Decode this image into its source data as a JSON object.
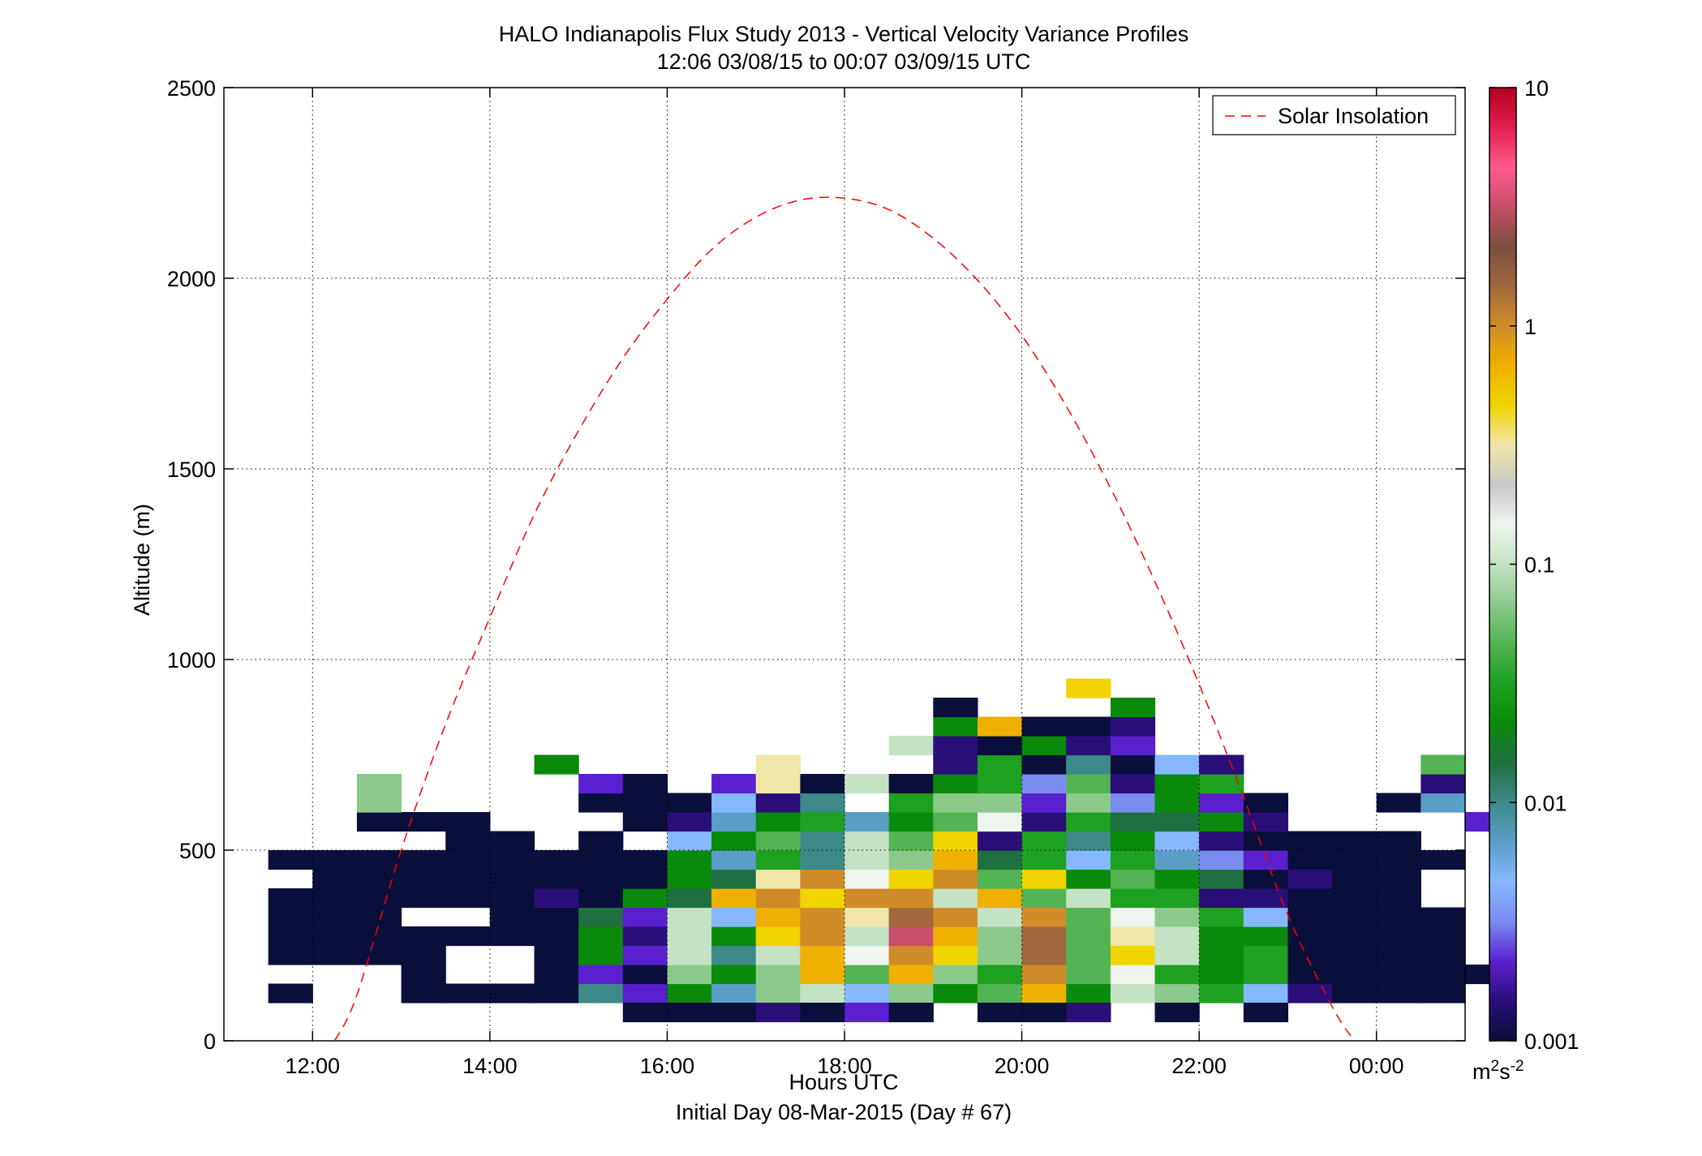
{
  "chart_data": {
    "type": "heatmap",
    "title": "HALO Indianapolis Flux Study 2013 - Vertical Velocity Variance Profiles",
    "subtitle": "12:06 03/08/15 to 00:07 03/09/15  UTC",
    "xlabel": "Hours UTC",
    "xlabel2": "Initial Day 08-Mar-2015 (Day # 67)",
    "ylabel": "Altitude (m)",
    "x_unit": "hours UTC (decimal, 24 = 00:00 next day)",
    "xlim": [
      11.0,
      25.0
    ],
    "ylim": [
      0,
      2500
    ],
    "x_ticks": [
      12,
      14,
      16,
      18,
      20,
      22,
      24
    ],
    "x_tick_labels": [
      "12:00",
      "14:00",
      "16:00",
      "18:00",
      "20:00",
      "22:00",
      "00:00"
    ],
    "y_ticks": [
      0,
      500,
      1000,
      1500,
      2000,
      2500
    ],
    "y_tick_labels": [
      "0",
      "500",
      "1000",
      "1500",
      "2000",
      "2500"
    ],
    "grid": true,
    "colorbar": {
      "scale": "log",
      "range": [
        0.001,
        10
      ],
      "ticks": [
        0.001,
        0.01,
        0.1,
        1,
        10
      ],
      "tick_labels": [
        "0.001",
        "0.01",
        "0.1",
        "1",
        "10"
      ],
      "unit_base": "m",
      "unit_exp1": "2",
      "unit_mid": "s",
      "unit_exp2": "-2",
      "stops": [
        "#0a0f3c",
        "#2a0f78",
        "#5a20d0",
        "#7a8cf0",
        "#86b8ff",
        "#5a9ec8",
        "#3d8a88",
        "#1f7040",
        "#0a8a0a",
        "#1ea020",
        "#52b452",
        "#8cca8c",
        "#c4e2c4",
        "#eef4ee",
        "#c8c8c8",
        "#f0e6a8",
        "#f0d400",
        "#f0b000",
        "#d08c28",
        "#a0683c",
        "#7a4e3e",
        "#c84e6c",
        "#ff5a8c",
        "#e02050",
        "#b40020"
      ]
    },
    "legend": {
      "position": "top-right",
      "entries": [
        {
          "name": "Solar Insolation",
          "color": "#ff0000",
          "style": "dashed"
        }
      ]
    },
    "cell": {
      "width_hours": 0.5,
      "height_m": 50
    },
    "rows": [
      {
        "alt": 125,
        "x_start": 11.5,
        "colors": [
          "#0a0f3c",
          null,
          null,
          "#0a0f3c",
          "#0a0f3c",
          "#0a0f3c",
          "#0a0f3c",
          "#3d8a88",
          "#5a20d0",
          "#0a8a0a",
          "#5a9ec8",
          "#8cca8c",
          "#c4e2c4",
          "#86b8ff",
          "#8cca8c",
          "#0a8a0a",
          "#52b452",
          "#f0b000",
          "#0a8a0a",
          "#c4e2c4",
          "#8cca8c",
          "#1ea020",
          "#86b8ff",
          "#2a0f78",
          "#0a0f3c",
          "#0a0f3c",
          "#0a0f3c"
        ]
      },
      {
        "alt": 175,
        "x_start": 13.0,
        "colors": [
          "#0a0f3c",
          null,
          null,
          "#0a0f3c",
          "#5a20d0",
          "#0a0f3c",
          "#8cca8c",
          "#0a8a0a",
          "#8cca8c",
          "#f0b000",
          "#52b452",
          "#f0b000",
          "#8cca8c",
          "#1ea020",
          "#d08c28",
          "#52b452",
          "#eef4ee",
          "#1ea020",
          "#0a8a0a",
          "#1ea020",
          "#0a0f3c",
          "#0a0f3c",
          "#0a0f3c",
          "#0a0f3c",
          "#0a0f3c"
        ]
      },
      {
        "alt": 225,
        "x_start": 11.5,
        "colors": [
          "#0a0f3c",
          "#0a0f3c",
          "#0a0f3c",
          "#0a0f3c",
          null,
          null,
          "#0a0f3c",
          "#0a8a0a",
          "#5a20d0",
          "#c4e2c4",
          "#3d8a88",
          "#c4e2c4",
          "#f0b000",
          "#eef4ee",
          "#d08c28",
          "#f0d400",
          "#8cca8c",
          "#a0683c",
          "#52b452",
          "#f0d400",
          "#c4e2c4",
          "#0a8a0a",
          "#1ea020",
          "#0a0f3c",
          "#0a0f3c",
          "#0a0f3c",
          "#0a0f3c"
        ]
      },
      {
        "alt": 275,
        "x_start": 11.5,
        "colors": [
          "#0a0f3c",
          "#0a0f3c",
          "#0a0f3c",
          "#0a0f3c",
          "#0a0f3c",
          "#0a0f3c",
          "#0a0f3c",
          "#0a8a0a",
          "#2a0f78",
          "#c4e2c4",
          "#0a8a0a",
          "#f0d400",
          "#d08c28",
          "#c4e2c4",
          "#c84e6c",
          "#f0b000",
          "#8cca8c",
          "#a0683c",
          "#52b452",
          "#f0e6a8",
          "#c4e2c4",
          "#0a8a0a",
          "#0a8a0a",
          "#0a0f3c",
          "#0a0f3c",
          "#0a0f3c",
          "#0a0f3c"
        ]
      },
      {
        "alt": 325,
        "x_start": 11.5,
        "colors": [
          "#0a0f3c",
          "#0a0f3c",
          "#0a0f3c",
          null,
          null,
          "#0a0f3c",
          "#0a0f3c",
          "#1f7040",
          "#5a20d0",
          "#c4e2c4",
          "#86b8ff",
          "#f0b000",
          "#d08c28",
          "#f0e6a8",
          "#a0683c",
          "#d08c28",
          "#c4e2c4",
          "#d08c28",
          "#52b452",
          "#eef4ee",
          "#8cca8c",
          "#1ea020",
          "#86b8ff",
          "#0a0f3c",
          "#0a0f3c",
          "#0a0f3c",
          "#0a0f3c"
        ]
      },
      {
        "alt": 375,
        "x_start": 11.5,
        "colors": [
          "#0a0f3c",
          "#0a0f3c",
          "#0a0f3c",
          "#0a0f3c",
          "#0a0f3c",
          "#0a0f3c",
          "#2a0f78",
          "#0a0f3c",
          "#0a8a0a",
          "#1f7040",
          "#f0b000",
          "#d08c28",
          "#f0d400",
          "#d08c28",
          "#d08c28",
          "#c4e2c4",
          "#f0b000",
          "#52b452",
          "#c4e2c4",
          "#1ea020",
          "#1ea020",
          "#2a0f78",
          "#2a0f78",
          "#0a0f3c",
          "#0a0f3c",
          "#0a0f3c"
        ]
      },
      {
        "alt": 425,
        "x_start": 12.0,
        "colors": [
          "#0a0f3c",
          "#0a0f3c",
          "#0a0f3c",
          "#0a0f3c",
          "#0a0f3c",
          "#0a0f3c",
          "#0a0f3c",
          "#0a0f3c",
          "#0a8a0a",
          "#1f7040",
          "#f0e6a8",
          "#d08c28",
          "#eef4ee",
          "#f0d400",
          "#d08c28",
          "#52b452",
          "#f0d400",
          "#0a8a0a",
          "#52b452",
          "#0a8a0a",
          "#1f7040",
          "#0a0f3c",
          "#2a0f78",
          "#0a0f3c",
          "#0a0f3c"
        ]
      },
      {
        "alt": 475,
        "x_start": 11.5,
        "colors": [
          "#0a0f3c",
          "#0a0f3c",
          "#0a0f3c",
          "#0a0f3c",
          "#0a0f3c",
          "#0a0f3c",
          "#0a0f3c",
          "#0a0f3c",
          "#0a0f3c",
          "#0a8a0a",
          "#5a9ec8",
          "#1ea020",
          "#3d8a88",
          "#c4e2c4",
          "#8cca8c",
          "#f0b000",
          "#1f7040",
          "#1ea020",
          "#86b8ff",
          "#1ea020",
          "#5a9ec8",
          "#7a8cf0",
          "#5a20d0",
          "#0a0f3c",
          "#0a0f3c",
          "#0a0f3c",
          "#0a0f3c"
        ]
      },
      {
        "alt": 525,
        "x_start": 13.5,
        "colors": [
          "#0a0f3c",
          "#0a0f3c",
          null,
          "#0a0f3c",
          null,
          "#86b8ff",
          "#0a8a0a",
          "#52b452",
          "#3d8a88",
          "#c4e2c4",
          "#52b452",
          "#f0d400",
          "#2a0f78",
          "#1ea020",
          "#3d8a88",
          "#0a8a0a",
          "#86b8ff",
          "#2a0f78",
          "#0a0f3c",
          "#0a0f3c",
          "#0a0f3c",
          "#0a0f3c"
        ]
      },
      {
        "alt": 575,
        "x_start": 12.5,
        "colors": [
          "#0a0f3c",
          "#0a0f3c",
          "#0a0f3c",
          null,
          null,
          null,
          "#0a0f3c",
          "#2a0f78",
          "#5a9ec8",
          "#0a8a0a",
          "#1ea020",
          "#5a9ec8",
          "#0a8a0a",
          "#52b452",
          "#eef4ee",
          "#2a0f78",
          "#1ea020",
          "#1f7040",
          "#1f7040",
          "#0a8a0a",
          "#2a0f78",
          null,
          null,
          null,
          null,
          "#5a20d0"
        ]
      },
      {
        "alt": 625,
        "x_start": 12.5,
        "colors": [
          "#8cca8c",
          null,
          null,
          null,
          null,
          "#0a0f3c",
          "#0a0f3c",
          "#0a0f3c",
          "#86b8ff",
          "#2a0f78",
          "#3d8a88",
          null,
          "#1ea020",
          "#8cca8c",
          "#8cca8c",
          "#5a20d0",
          "#8cca8c",
          "#7a8cf0",
          "#0a8a0a",
          "#5a20d0",
          "#0a0f3c",
          null,
          null,
          "#0a0f3c",
          "#5a9ec8"
        ]
      },
      {
        "alt": 675,
        "x_start": 12.5,
        "colors": [
          "#8cca8c",
          null,
          null,
          null,
          null,
          "#5a20d0",
          "#0a0f3c",
          null,
          "#5a20d0",
          "#f0e6a8",
          "#0a0f3c",
          "#c4e2c4",
          "#0a0f3c",
          "#0a8a0a",
          "#1ea020",
          "#7a8cf0",
          "#52b452",
          "#2a0f78",
          "#0a8a0a",
          "#1ea020",
          null,
          null,
          null,
          null,
          "#2a0f78"
        ]
      },
      {
        "alt": 725,
        "x_start": 14.5,
        "colors": [
          "#0a8a0a",
          null,
          null,
          null,
          null,
          "#f0e6a8",
          null,
          null,
          null,
          "#2a0f78",
          "#1ea020",
          "#0a0f3c",
          "#3d8a88",
          "#0a0f3c",
          "#86b8ff",
          "#2a0f78",
          null,
          null,
          null,
          null,
          "#52b452"
        ]
      },
      {
        "alt": 775,
        "x_start": 18.5,
        "colors": [
          "#c4e2c4",
          "#2a0f78",
          "#0a0f3c",
          "#0a8a0a",
          "#2a0f78",
          "#5a20d0"
        ]
      },
      {
        "alt": 825,
        "x_start": 19.0,
        "colors": [
          "#0a8a0a",
          "#f0b000",
          "#0a0f3c",
          "#0a0f3c",
          "#2a0f78"
        ]
      },
      {
        "alt": 875,
        "x_start": 19.0,
        "colors": [
          "#0a0f3c",
          null,
          null,
          null,
          "#0a8a0a"
        ]
      },
      {
        "alt": 925,
        "x_start": 20.5,
        "colors": [
          "#f0d400"
        ]
      },
      {
        "alt": 75,
        "x_start": 15.5,
        "colors": [
          "#0a0f3c",
          "#0a0f3c",
          "#0a0f3c",
          "#2a0f78",
          "#0a0f3c",
          "#5a20d0",
          "#0a0f3c",
          null,
          "#0a0f3c",
          "#0a0f3c",
          "#2a0f78",
          null,
          "#0a0f3c",
          null,
          "#0a0f3c"
        ]
      }
    ],
    "series": [
      {
        "name": "Solar Insolation",
        "x": [
          12.25,
          12.5,
          13.0,
          13.5,
          14.0,
          14.5,
          15.0,
          15.5,
          16.0,
          16.5,
          17.0,
          17.5,
          18.0,
          18.5,
          19.0,
          19.5,
          20.0,
          20.5,
          21.0,
          21.5,
          22.0,
          22.5,
          23.0,
          23.5,
          23.75
        ],
        "y": [
          0,
          120,
          500,
          830,
          1110,
          1380,
          1600,
          1790,
          1945,
          2075,
          2160,
          2205,
          2210,
          2180,
          2105,
          1995,
          1850,
          1665,
          1450,
          1205,
          935,
          640,
          330,
          90,
          0
        ]
      }
    ]
  }
}
